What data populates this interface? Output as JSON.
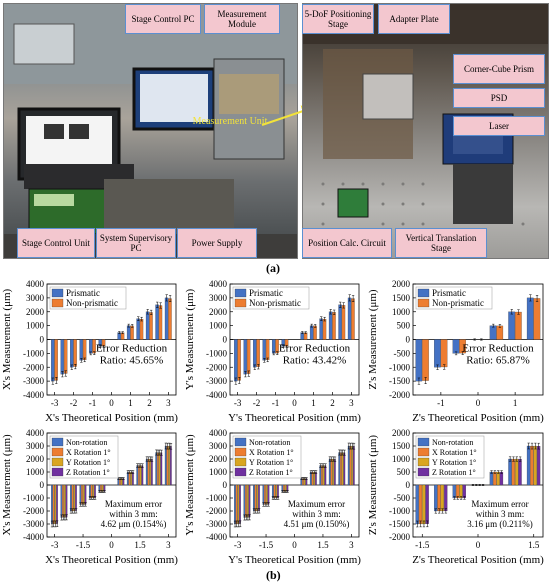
{
  "panel_a": {
    "label": "(a)",
    "left_callouts": {
      "stage_pc": "Stage Control PC",
      "measurement_module": "Measurement Module",
      "measurement_unit": "Measurement Unit",
      "stage_control_unit": "Stage Control Unit",
      "system_supervisory_pc": "System Supervisory PC",
      "power_supply": "Power Supply"
    },
    "right_callouts": {
      "positioning_stage": "5-DoF Positioning Stage",
      "adapter_plate": "Adapter Plate",
      "corner_cube": "Corner-Cube Prism",
      "psd": "PSD",
      "laser": "Laser",
      "position_calc": "Position Calc. Circuit",
      "vertical_stage": "Vertical Translation Stage"
    }
  },
  "panel_b": {
    "label": "(b)"
  },
  "colors": {
    "blue": "#4472c4",
    "orange": "#ed7d31",
    "gold": "#d9a520",
    "purple": "#7030a0",
    "callout_fill": "#f3c7cf",
    "callout_border": "#5b8fd1"
  },
  "chart_data": [
    {
      "type": "bar",
      "ylabel": "X's Measurement (μm)",
      "xlabel": "X's Theoretical Position (mm)",
      "ylim": [
        -4000,
        4000
      ],
      "yticks": [
        -4000,
        -3000,
        -2000,
        -1000,
        0,
        1000,
        2000,
        3000,
        4000
      ],
      "xticks": [
        "-3",
        "-2",
        "-1",
        "0",
        "1",
        "2",
        "3"
      ],
      "xrange": [
        -3.4,
        3.4
      ],
      "x": [
        -3,
        -2.5,
        -2,
        -1.5,
        -1,
        -0.5,
        0.5,
        1,
        1.5,
        2,
        2.5,
        3
      ],
      "series": [
        {
          "name": "Prismatic",
          "values": [
            -3000,
            -2500,
            -2000,
            -1500,
            -1000,
            -500,
            500,
            1000,
            1500,
            2000,
            2500,
            3000
          ]
        },
        {
          "name": "Non-prismatic",
          "values": [
            -2950,
            -2450,
            -1950,
            -1470,
            -980,
            -490,
            490,
            980,
            1470,
            1950,
            2450,
            2950
          ]
        }
      ],
      "annotation": [
        "Error Reduction",
        "Ratio: 45.65%"
      ]
    },
    {
      "type": "bar",
      "ylabel": "Y's Measurement (μm)",
      "xlabel": "Y's Theoretical Position (mm)",
      "ylim": [
        -4000,
        4000
      ],
      "yticks": [
        -4000,
        -3000,
        -2000,
        -1000,
        0,
        1000,
        2000,
        3000,
        4000
      ],
      "xticks": [
        "-3",
        "-2",
        "-1",
        "0",
        "1",
        "2",
        "3"
      ],
      "xrange": [
        -3.4,
        3.4
      ],
      "x": [
        -3,
        -2.5,
        -2,
        -1.5,
        -1,
        -0.5,
        0.5,
        1,
        1.5,
        2,
        2.5,
        3
      ],
      "series": [
        {
          "name": "Prismatic",
          "values": [
            -3000,
            -2500,
            -2000,
            -1500,
            -1000,
            -500,
            500,
            1000,
            1500,
            2000,
            2500,
            3000
          ]
        },
        {
          "name": "Non-prismatic",
          "values": [
            -2950,
            -2460,
            -1960,
            -1470,
            -980,
            -490,
            490,
            980,
            1470,
            1960,
            2460,
            2950
          ]
        }
      ],
      "annotation": [
        "Error Reduction",
        "Ratio: 43.42%"
      ]
    },
    {
      "type": "bar",
      "ylabel": "Z's Measurement (μm)",
      "xlabel": "Z's Theoretical Position (mm)",
      "ylim": [
        -2000,
        2000
      ],
      "yticks": [
        -2000,
        -1500,
        -1000,
        -500,
        0,
        500,
        1000,
        1500,
        2000
      ],
      "xticks": [
        "-1",
        "0",
        "1"
      ],
      "xrange": [
        -1.75,
        1.75
      ],
      "x": [
        -1.5,
        -1,
        -0.5,
        0,
        0.5,
        1,
        1.5
      ],
      "series": [
        {
          "name": "Prismatic",
          "values": [
            -1500,
            -1000,
            -500,
            0,
            500,
            1000,
            1500
          ]
        },
        {
          "name": "Non-prismatic",
          "values": [
            -1480,
            -990,
            -490,
            0,
            490,
            990,
            1480
          ]
        }
      ],
      "annotation": [
        "Error Reduction",
        "Ratio: 65.87%"
      ]
    },
    {
      "type": "bar",
      "ylabel": "X's Measurement (μm)",
      "xlabel": "X's Theoretical Position (mm)",
      "ylim": [
        -4000,
        4000
      ],
      "yticks": [
        -4000,
        -3000,
        -2000,
        -1000,
        0,
        1000,
        2000,
        3000,
        4000
      ],
      "xticks": [
        "-3",
        "-1.5",
        "0",
        "1.5",
        "3"
      ],
      "xrange": [
        -3.4,
        3.4
      ],
      "x": [
        -3,
        -2.5,
        -2,
        -1.5,
        -1,
        -0.5,
        0.5,
        1,
        1.5,
        2,
        2.5,
        3
      ],
      "series": [
        {
          "name": "Non-rotation",
          "values": [
            -3000,
            -2500,
            -2000,
            -1500,
            -1000,
            -500,
            500,
            1000,
            1500,
            2000,
            2500,
            3000
          ]
        },
        {
          "name": "X Rotation 1°",
          "values": [
            -2990,
            -2490,
            -1995,
            -1495,
            -998,
            -499,
            499,
            998,
            1495,
            1995,
            2490,
            2990
          ]
        },
        {
          "name": "Y Rotation 1°",
          "values": [
            -2995,
            -2495,
            -1997,
            -1497,
            -999,
            -500,
            500,
            999,
            1497,
            1997,
            2495,
            2995
          ]
        },
        {
          "name": "Z Rotation 1°",
          "values": [
            -2985,
            -2488,
            -1990,
            -1492,
            -995,
            -498,
            498,
            995,
            1492,
            1990,
            2488,
            2985
          ]
        }
      ],
      "annotation": [
        "Maximum error",
        "within 3 mm:",
        "4.62 μm (0.154%)"
      ]
    },
    {
      "type": "bar",
      "ylabel": "Y's Measurement (μm)",
      "xlabel": "Y's Theoretical Position (mm)",
      "ylim": [
        -4000,
        4000
      ],
      "yticks": [
        -4000,
        -3000,
        -2000,
        -1000,
        0,
        1000,
        2000,
        3000,
        4000
      ],
      "xticks": [
        "-3",
        "-1.5",
        "0",
        "1.5",
        "3"
      ],
      "xrange": [
        -3.4,
        3.4
      ],
      "x": [
        -3,
        -2.5,
        -2,
        -1.5,
        -1,
        -0.5,
        0.5,
        1,
        1.5,
        2,
        2.5,
        3
      ],
      "series": [
        {
          "name": "Non-rotation",
          "values": [
            -3000,
            -2500,
            -2000,
            -1500,
            -1000,
            -500,
            500,
            1000,
            1500,
            2000,
            2500,
            3000
          ]
        },
        {
          "name": "X Rotation 1°",
          "values": [
            -2992,
            -2492,
            -1995,
            -1496,
            -998,
            -499,
            499,
            998,
            1496,
            1995,
            2492,
            2992
          ]
        },
        {
          "name": "Y Rotation 1°",
          "values": [
            -2996,
            -2496,
            -1997,
            -1498,
            -999,
            -500,
            500,
            999,
            1498,
            1997,
            2496,
            2996
          ]
        },
        {
          "name": "Z Rotation 1°",
          "values": [
            -2988,
            -2489,
            -1991,
            -1493,
            -996,
            -498,
            498,
            996,
            1493,
            1991,
            2489,
            2988
          ]
        }
      ],
      "annotation": [
        "Maximum error",
        "within 3 mm:",
        "4.51 μm (0.150%)"
      ]
    },
    {
      "type": "bar",
      "ylabel": "Z's Measurement (μm)",
      "xlabel": "Z's Theoretical Position (mm)",
      "ylim": [
        -2000,
        2000
      ],
      "yticks": [
        -2000,
        -1500,
        -1000,
        -500,
        0,
        500,
        1000,
        1500,
        2000
      ],
      "xticks": [
        "-1.5",
        "0",
        "1.5"
      ],
      "xrange": [
        -1.75,
        1.75
      ],
      "x": [
        -1.5,
        -1,
        -0.5,
        0,
        0.5,
        1,
        1.5
      ],
      "series": [
        {
          "name": "Non-rotation",
          "values": [
            -1500,
            -1000,
            -500,
            0,
            500,
            1000,
            1500
          ]
        },
        {
          "name": "X Rotation 1°",
          "values": [
            -1497,
            -998,
            -499,
            0,
            499,
            998,
            1497
          ]
        },
        {
          "name": "Y Rotation 1°",
          "values": [
            -1498,
            -999,
            -500,
            0,
            500,
            999,
            1498
          ]
        },
        {
          "name": "Z Rotation 1°",
          "values": [
            -1495,
            -997,
            -498,
            0,
            498,
            997,
            1495
          ]
        }
      ],
      "annotation": [
        "Maximum error",
        "within 3 mm:",
        "3.16 μm (0.211%)"
      ]
    }
  ]
}
